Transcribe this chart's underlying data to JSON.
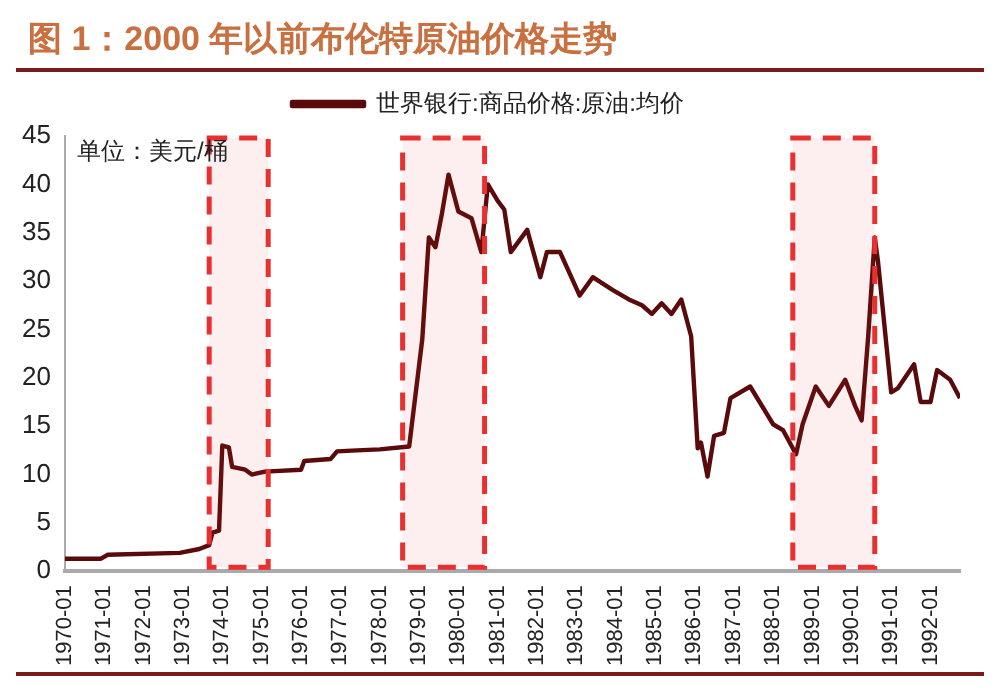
{
  "chart_data": {
    "type": "line",
    "title": "图 1：2000 年以前布伦特原油价格走势",
    "ylabel": "单位：美元/桶",
    "x": [
      "1970-01",
      "1970-12",
      "1971-02",
      "1972-12",
      "1973-06",
      "1973-09",
      "1973-10",
      "1973-12",
      "1974-01",
      "1974-03",
      "1974-04",
      "1974-08",
      "1974-10",
      "1975-02",
      "1976-01",
      "1976-02",
      "1976-10",
      "1976-12",
      "1977-06",
      "1978-01",
      "1978-10",
      "1979-02",
      "1979-04",
      "1979-06",
      "1979-08",
      "1979-10",
      "1980-01",
      "1980-05",
      "1980-08",
      "1980-10",
      "1981-01",
      "1981-03",
      "1981-05",
      "1981-10",
      "1982-02",
      "1982-04",
      "1982-08",
      "1983-02",
      "1983-06",
      "1983-12",
      "1984-05",
      "1984-09",
      "1984-12",
      "1985-03",
      "1985-06",
      "1985-09",
      "1985-12",
      "1986-02",
      "1986-03",
      "1986-05",
      "1986-07",
      "1986-10",
      "1986-12",
      "1987-06",
      "1988-01",
      "1988-04",
      "1988-08",
      "1988-10",
      "1989-02",
      "1989-06",
      "1989-11",
      "1990-02",
      "1990-04",
      "1990-06",
      "1990-08",
      "1990-09",
      "1991-01",
      "1991-03",
      "1991-08",
      "1991-10",
      "1992-01",
      "1992-03",
      "1992-07",
      "1992-10"
    ],
    "series": [
      {
        "name": "世界银行:商品价格:原油:均价",
        "color": "#5a0a0a",
        "values": [
          1.3,
          1.3,
          1.7,
          1.9,
          2.3,
          2.7,
          4.0,
          4.2,
          13.0,
          12.8,
          10.8,
          10.5,
          10.0,
          10.3,
          10.5,
          11.4,
          11.6,
          12.4,
          12.5,
          12.6,
          12.9,
          24,
          34.5,
          33.5,
          37,
          41,
          37.2,
          36.5,
          33,
          40,
          38.3,
          37.4,
          33,
          35.3,
          30.4,
          33,
          33,
          28.5,
          30.4,
          29.1,
          28.1,
          27.5,
          26.6,
          27.7,
          26.6,
          28.1,
          24.3,
          12.7,
          13.3,
          9.8,
          14,
          14.3,
          17.9,
          19.1,
          15.2,
          14.6,
          12.1,
          15.2,
          19.1,
          17.1,
          19.8,
          17.1,
          15.6,
          24.3,
          34.5,
          32,
          18.5,
          18.9,
          21.4,
          17.5,
          17.5,
          20.8,
          19.8,
          17.9
        ]
      }
    ],
    "xlim": [
      "1970-01",
      "1992-10"
    ],
    "xticks": [
      "1970-01",
      "1971-01",
      "1972-01",
      "1973-01",
      "1974-01",
      "1975-01",
      "1976-01",
      "1977-01",
      "1978-01",
      "1979-01",
      "1980-01",
      "1981-01",
      "1982-01",
      "1983-01",
      "1984-01",
      "1985-01",
      "1986-01",
      "1987-01",
      "1988-01",
      "1989-01",
      "1990-01",
      "1991-01",
      "1992-01"
    ],
    "ylim": [
      0,
      45
    ],
    "yticks": [
      0,
      5,
      10,
      15,
      20,
      25,
      30,
      35,
      40,
      45
    ],
    "bands": [
      {
        "axis": "x",
        "from": "1973-09",
        "to": "1975-03",
        "color": "#e83030"
      },
      {
        "axis": "x",
        "from": "1978-08",
        "to": "1980-09",
        "color": "#e83030"
      },
      {
        "axis": "x",
        "from": "1988-07",
        "to": "1990-08",
        "color": "#e83030"
      }
    ],
    "grid": false,
    "legend": "top",
    "marker": "none",
    "line_style": "solid"
  }
}
